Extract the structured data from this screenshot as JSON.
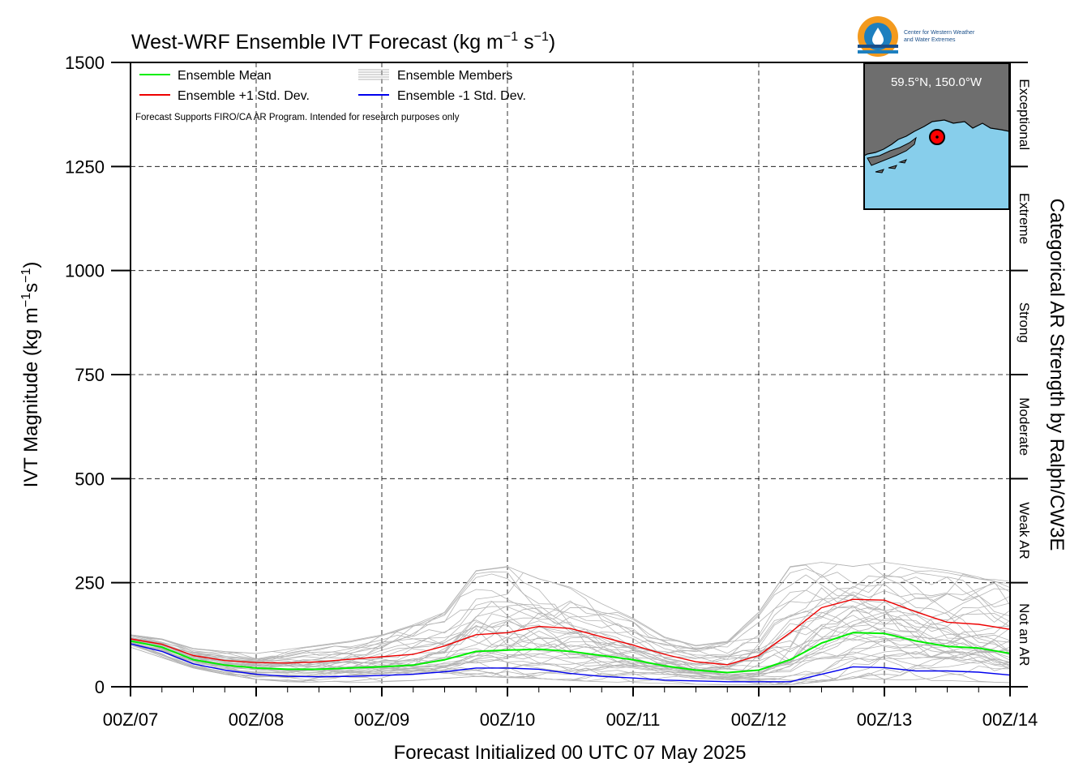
{
  "logo": {
    "line1": "Center for Western Weather",
    "line2": "and Water Extremes",
    "colors": {
      "orange": "#f39a1e",
      "blue": "#1d7fbf",
      "navy": "#1a4f8a"
    }
  },
  "inset": {
    "location": "59.5°N, 150.0°W",
    "colors": {
      "land": "#6e6e6e",
      "ocean": "#87ceeb",
      "marker": "#ff0000"
    }
  },
  "chart_data": {
    "type": "line",
    "title": "West-WRF Ensemble IVT Forecast (kg m",
    "title_parts": {
      "sup1": "−1",
      "mid": " s",
      "sup2": "−1",
      "end": ")"
    },
    "xlabel": "Forecast Initialized 00 UTC 07 May 2025",
    "ylabel": "IVT Magnitude (kg m",
    "ylabel_parts": {
      "sup1": "−1",
      "mid": "s",
      "sup2": "−1",
      "end": ")"
    },
    "right_label": "Categorical AR Strength by Ralph/CW3E",
    "note": "Forecast Supports FIRO/CA AR Program. Intended for research purposes only",
    "x_unit": "hours since 00Z/07",
    "xlim": [
      0,
      168
    ],
    "ylim": [
      0,
      1500
    ],
    "grid": true,
    "legend_position": "top-left",
    "x_ticks": [
      {
        "value": 0,
        "label": "00Z/07"
      },
      {
        "value": 24,
        "label": "00Z/08"
      },
      {
        "value": 48,
        "label": "00Z/09"
      },
      {
        "value": 72,
        "label": "00Z/10"
      },
      {
        "value": 96,
        "label": "00Z/11"
      },
      {
        "value": 120,
        "label": "00Z/12"
      },
      {
        "value": 144,
        "label": "00Z/13"
      },
      {
        "value": 168,
        "label": "00Z/14"
      }
    ],
    "y_ticks": [
      {
        "value": 0,
        "label": "0"
      },
      {
        "value": 250,
        "label": "250"
      },
      {
        "value": 500,
        "label": "500"
      },
      {
        "value": 750,
        "label": "750"
      },
      {
        "value": 1000,
        "label": "1000"
      },
      {
        "value": 1250,
        "label": "1250"
      },
      {
        "value": 1500,
        "label": "1500"
      }
    ],
    "categories": [
      {
        "label": "Not an AR",
        "from": 0,
        "to": 250
      },
      {
        "label": "Weak AR",
        "from": 250,
        "to": 500
      },
      {
        "label": "Moderate",
        "from": 500,
        "to": 750
      },
      {
        "label": "Strong",
        "from": 750,
        "to": 1000
      },
      {
        "label": "Extreme",
        "from": 1000,
        "to": 1250
      },
      {
        "label": "Exceptional",
        "from": 1250,
        "to": 1500
      }
    ],
    "x": [
      0,
      6,
      12,
      18,
      24,
      30,
      36,
      42,
      48,
      54,
      60,
      66,
      72,
      78,
      84,
      90,
      96,
      102,
      108,
      114,
      120,
      126,
      132,
      138,
      144,
      150,
      156,
      162,
      168
    ],
    "series": [
      {
        "name": "Ensemble Mean",
        "color": "#00ee00",
        "values": [
          110,
          95,
          65,
          52,
          45,
          42,
          42,
          45,
          48,
          52,
          65,
          85,
          88,
          90,
          85,
          75,
          65,
          50,
          40,
          34,
          40,
          65,
          105,
          130,
          128,
          110,
          97,
          93,
          80
        ]
      },
      {
        "name": "Ensemble +1 Std. Dev.",
        "color": "#ee0000",
        "values": [
          115,
          102,
          75,
          63,
          58,
          57,
          60,
          66,
          72,
          78,
          98,
          125,
          130,
          145,
          140,
          120,
          100,
          78,
          60,
          53,
          75,
          130,
          190,
          210,
          208,
          180,
          155,
          150,
          138
        ]
      },
      {
        "name": "Ensemble -1 Std. Dev.",
        "color": "#0000ee",
        "values": [
          103,
          85,
          55,
          40,
          30,
          25,
          24,
          25,
          27,
          30,
          36,
          45,
          45,
          42,
          32,
          25,
          21,
          16,
          14,
          12,
          12,
          12,
          30,
          48,
          46,
          38,
          38,
          35,
          28
        ]
      },
      {
        "name": "Ensemble Members",
        "color": "#b4b4b4",
        "member_count": 40,
        "member_range_min": [
          95,
          70,
          45,
          30,
          18,
          12,
          10,
          10,
          12,
          15,
          20,
          25,
          22,
          20,
          15,
          12,
          10,
          8,
          6,
          5,
          5,
          5,
          12,
          20,
          18,
          15,
          15,
          12,
          10
        ],
        "member_range_max": [
          125,
          115,
          92,
          85,
          80,
          90,
          100,
          110,
          125,
          150,
          180,
          280,
          290,
          260,
          240,
          200,
          165,
          120,
          100,
          110,
          180,
          290,
          300,
          290,
          300,
          290,
          280,
          265,
          255
        ]
      }
    ]
  }
}
